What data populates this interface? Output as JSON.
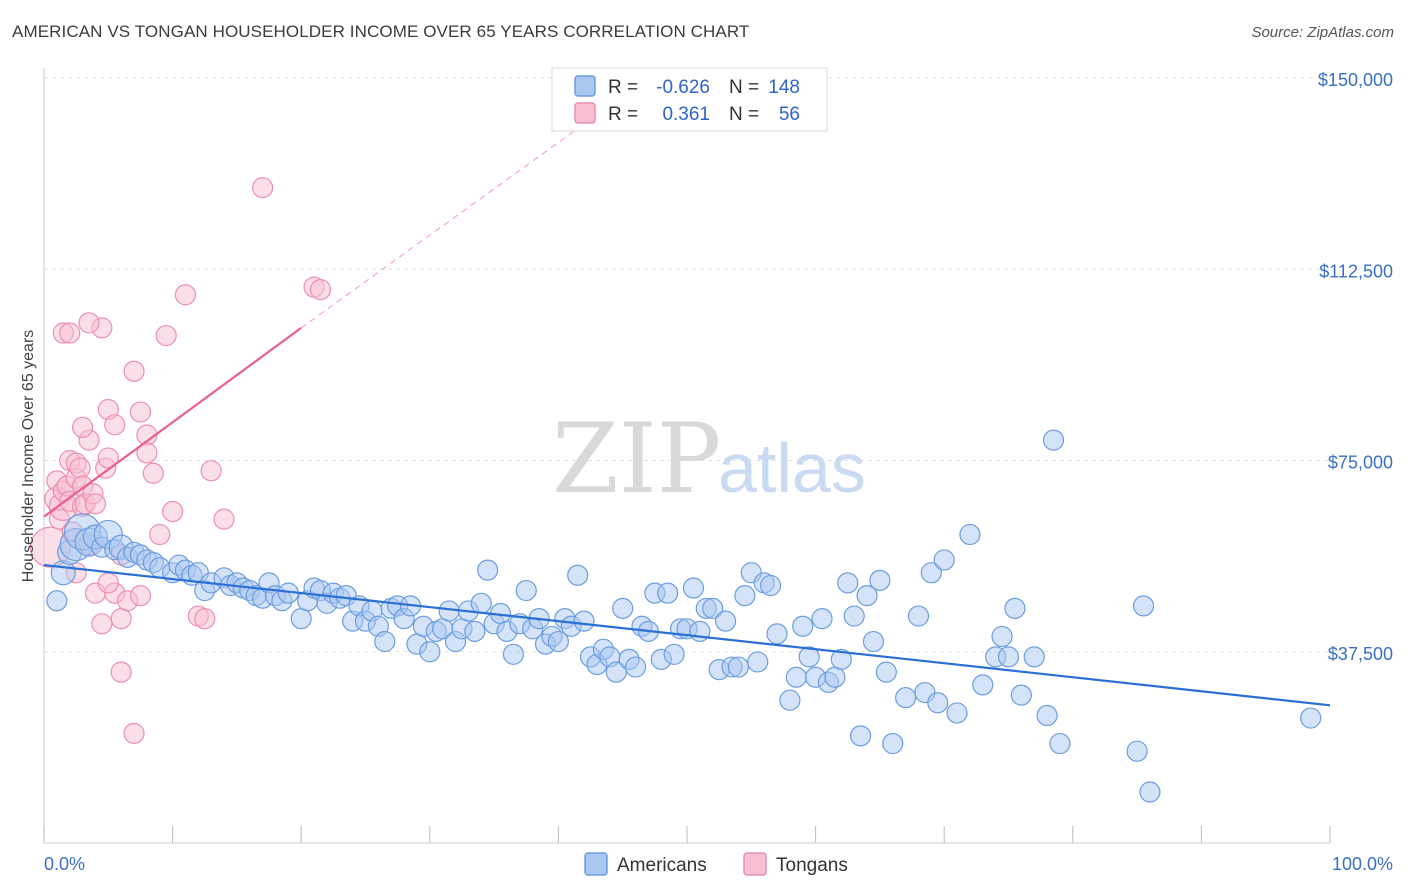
{
  "title": "AMERICAN VS TONGAN HOUSEHOLDER INCOME OVER 65 YEARS CORRELATION CHART",
  "source": "Source: ZipAtlas.com",
  "watermark": {
    "zip": "ZIP",
    "atlas": "atlas"
  },
  "legend": {
    "r_label": "R =",
    "n_label": "N =",
    "rows": [
      {
        "series": "Americans",
        "r": "-0.626",
        "n": "148",
        "color": "#8ab4ea"
      },
      {
        "series": "Tongans",
        "r": "0.361",
        "n": "56",
        "color": "#f4a6c0"
      }
    ]
  },
  "bottom_legend": [
    "Americans",
    "Tongans"
  ],
  "colors": {
    "americans_fill": "#a9c8f0",
    "americans_stroke": "#6b9de0",
    "americans_line": "#2a6fd4",
    "tongans_fill": "#f8bfd2",
    "tongans_stroke": "#ec8fae",
    "tongans_line": "#e8608e",
    "axis_text": "#3a6fc4"
  },
  "chart_data": {
    "type": "scatter",
    "title": "AMERICAN VS TONGAN HOUSEHOLDER INCOME OVER 65 YEARS CORRELATION CHART",
    "xlabel": "",
    "ylabel": "Householder Income Over 65 years",
    "xlim": [
      0,
      100
    ],
    "ylim": [
      0,
      150000
    ],
    "x_tick_labels": [
      "0.0%",
      "100.0%"
    ],
    "y_ticks": [
      37500,
      75000,
      112500,
      150000
    ],
    "y_tick_labels": [
      "$37,500",
      "$75,000",
      "$112,500",
      "$150,000"
    ],
    "grid": true,
    "legend_position": "top-center",
    "series": [
      {
        "name": "Americans",
        "trend": {
          "x": [
            0,
            100
          ],
          "y": [
            54500,
            27000
          ]
        },
        "points": [
          [
            1,
            47500,
            10
          ],
          [
            1.5,
            53000,
            12
          ],
          [
            2,
            57000,
            12
          ],
          [
            2.5,
            58500,
            16
          ],
          [
            3,
            61000,
            18
          ],
          [
            3.5,
            59000,
            14
          ],
          [
            4,
            60000,
            12
          ],
          [
            4.5,
            58000,
            10
          ],
          [
            5,
            60500,
            14
          ],
          [
            5.5,
            57500,
            10
          ],
          [
            6,
            58000,
            12
          ],
          [
            6.5,
            56000,
            10
          ],
          [
            7,
            57000,
            10
          ],
          [
            7.5,
            56500,
            10
          ],
          [
            8,
            55500,
            10
          ],
          [
            8.5,
            55000,
            10
          ],
          [
            9,
            54000,
            10
          ],
          [
            10,
            53000,
            10
          ],
          [
            10.5,
            54500,
            10
          ],
          [
            11,
            53500,
            10
          ],
          [
            11.5,
            52500,
            10
          ],
          [
            12,
            53000,
            10
          ],
          [
            12.5,
            49500,
            10
          ],
          [
            13,
            51000,
            10
          ],
          [
            14,
            52000,
            10
          ],
          [
            14.5,
            50500,
            10
          ],
          [
            15,
            51000,
            10
          ],
          [
            15.5,
            50000,
            10
          ],
          [
            16,
            49500,
            10
          ],
          [
            16.5,
            48500,
            10
          ],
          [
            17,
            48000,
            10
          ],
          [
            17.5,
            51000,
            10
          ],
          [
            18,
            48500,
            10
          ],
          [
            18.5,
            47500,
            10
          ],
          [
            19,
            49000,
            10
          ],
          [
            20,
            44000,
            10
          ],
          [
            20.5,
            47500,
            10
          ],
          [
            21,
            50000,
            10
          ],
          [
            21.5,
            49500,
            10
          ],
          [
            22,
            47000,
            10
          ],
          [
            22.5,
            49000,
            10
          ],
          [
            23,
            48000,
            10
          ],
          [
            23.5,
            48500,
            10
          ],
          [
            24,
            43500,
            10
          ],
          [
            24.5,
            46500,
            10
          ],
          [
            25,
            43500,
            10
          ],
          [
            25.5,
            45500,
            10
          ],
          [
            26,
            42500,
            10
          ],
          [
            26.5,
            39500,
            10
          ],
          [
            27,
            46000,
            10
          ],
          [
            27.5,
            46500,
            10
          ],
          [
            28,
            44000,
            10
          ],
          [
            28.5,
            46500,
            10
          ],
          [
            29,
            39000,
            10
          ],
          [
            29.5,
            42500,
            10
          ],
          [
            30,
            37500,
            10
          ],
          [
            30.5,
            41500,
            10
          ],
          [
            31,
            42000,
            10
          ],
          [
            31.5,
            45500,
            10
          ],
          [
            32,
            39500,
            10
          ],
          [
            32.5,
            42000,
            10
          ],
          [
            33,
            45500,
            10
          ],
          [
            33.5,
            41500,
            10
          ],
          [
            34,
            47000,
            10
          ],
          [
            34.5,
            53500,
            10
          ],
          [
            35,
            43000,
            10
          ],
          [
            35.5,
            45000,
            10
          ],
          [
            36,
            41500,
            10
          ],
          [
            36.5,
            37000,
            10
          ],
          [
            37,
            43000,
            10
          ],
          [
            37.5,
            49500,
            10
          ],
          [
            38,
            42000,
            10
          ],
          [
            38.5,
            44000,
            10
          ],
          [
            39,
            39000,
            10
          ],
          [
            39.5,
            40500,
            10
          ],
          [
            40,
            39500,
            10
          ],
          [
            40.5,
            44000,
            10
          ],
          [
            41,
            42500,
            10
          ],
          [
            41.5,
            52500,
            10
          ],
          [
            42,
            43500,
            10
          ],
          [
            42.5,
            36500,
            10
          ],
          [
            43,
            35000,
            10
          ],
          [
            43.5,
            38000,
            10
          ],
          [
            44,
            36500,
            10
          ],
          [
            44.5,
            33500,
            10
          ],
          [
            45,
            46000,
            10
          ],
          [
            45.5,
            36000,
            10
          ],
          [
            46,
            34500,
            10
          ],
          [
            46.5,
            42500,
            10
          ],
          [
            47,
            41500,
            10
          ],
          [
            47.5,
            49000,
            10
          ],
          [
            48,
            36000,
            10
          ],
          [
            48.5,
            49000,
            10
          ],
          [
            49,
            37000,
            10
          ],
          [
            49.5,
            42000,
            10
          ],
          [
            50,
            42000,
            10
          ],
          [
            50.5,
            50000,
            10
          ],
          [
            51,
            41500,
            10
          ],
          [
            51.5,
            46000,
            10
          ],
          [
            52,
            46000,
            10
          ],
          [
            52.5,
            34000,
            10
          ],
          [
            53,
            43500,
            10
          ],
          [
            53.5,
            34500,
            10
          ],
          [
            54,
            34500,
            10
          ],
          [
            54.5,
            48500,
            10
          ],
          [
            55,
            53000,
            10
          ],
          [
            55.5,
            35500,
            10
          ],
          [
            56,
            51000,
            10
          ],
          [
            56.5,
            50500,
            10
          ],
          [
            57,
            41000,
            10
          ],
          [
            58,
            28000,
            10
          ],
          [
            58.5,
            32500,
            10
          ],
          [
            59,
            42500,
            10
          ],
          [
            59.5,
            36500,
            10
          ],
          [
            60,
            32500,
            10
          ],
          [
            60.5,
            44000,
            10
          ],
          [
            61,
            31500,
            10
          ],
          [
            61.5,
            32500,
            10
          ],
          [
            62,
            36000,
            10
          ],
          [
            62.5,
            51000,
            10
          ],
          [
            63,
            44500,
            10
          ],
          [
            63.5,
            21000,
            10
          ],
          [
            64,
            48500,
            10
          ],
          [
            64.5,
            39500,
            10
          ],
          [
            65,
            51500,
            10
          ],
          [
            65.5,
            33500,
            10
          ],
          [
            66,
            19500,
            10
          ],
          [
            67,
            28500,
            10
          ],
          [
            68,
            44500,
            10
          ],
          [
            68.5,
            29500,
            10
          ],
          [
            69,
            53000,
            10
          ],
          [
            69.5,
            27500,
            10
          ],
          [
            70,
            55500,
            10
          ],
          [
            71,
            25500,
            10
          ],
          [
            72,
            60500,
            10
          ],
          [
            73,
            31000,
            10
          ],
          [
            74,
            36500,
            10
          ],
          [
            74.5,
            40500,
            10
          ],
          [
            75,
            36500,
            10
          ],
          [
            75.5,
            46000,
            10
          ],
          [
            76,
            29000,
            10
          ],
          [
            77,
            36500,
            10
          ],
          [
            78,
            25000,
            10
          ],
          [
            78.5,
            79000,
            10
          ],
          [
            79,
            19500,
            10
          ],
          [
            85,
            18000,
            10
          ],
          [
            85.5,
            46500,
            10
          ],
          [
            86,
            10000,
            10
          ],
          [
            98.5,
            24500,
            10
          ]
        ]
      },
      {
        "name": "Tongans",
        "trend": {
          "x": [
            0,
            20
          ],
          "y": [
            64000,
            101000
          ]
        },
        "trend_dashed": {
          "x": [
            20,
            42
          ],
          "y": [
            101000,
            141000
          ]
        },
        "points": [
          [
            0.5,
            58000,
            20
          ],
          [
            1,
            67500,
            12
          ],
          [
            1,
            71000,
            10
          ],
          [
            1.2,
            63500,
            10
          ],
          [
            1.5,
            66000,
            14
          ],
          [
            1.5,
            69000,
            10
          ],
          [
            1.8,
            70000,
            10
          ],
          [
            2,
            75000,
            10
          ],
          [
            2,
            67000,
            10
          ],
          [
            2.2,
            61000,
            10
          ],
          [
            2.5,
            71500,
            10
          ],
          [
            2.5,
            74500,
            10
          ],
          [
            2.8,
            73500,
            10
          ],
          [
            3,
            66000,
            10
          ],
          [
            3,
            70000,
            10
          ],
          [
            3.2,
            66500,
            10
          ],
          [
            3.5,
            58500,
            10
          ],
          [
            3.5,
            79000,
            10
          ],
          [
            3.8,
            68500,
            10
          ],
          [
            4,
            49000,
            10
          ],
          [
            4.5,
            43000,
            10
          ],
          [
            4.5,
            101000,
            10
          ],
          [
            4.8,
            73500,
            10
          ],
          [
            5,
            75500,
            10
          ],
          [
            5,
            85000,
            10
          ],
          [
            5.5,
            82000,
            10
          ],
          [
            5.5,
            49000,
            10
          ],
          [
            6,
            56500,
            10
          ],
          [
            6,
            44000,
            10
          ],
          [
            6.5,
            47500,
            10
          ],
          [
            7,
            92500,
            10
          ],
          [
            7,
            21500,
            10
          ],
          [
            7.5,
            84500,
            10
          ],
          [
            8,
            80000,
            10
          ],
          [
            8,
            76500,
            10
          ],
          [
            8.5,
            72500,
            10
          ],
          [
            9,
            60500,
            10
          ],
          [
            9.5,
            99500,
            10
          ],
          [
            10,
            65000,
            10
          ],
          [
            11,
            107500,
            10
          ],
          [
            12,
            44500,
            10
          ],
          [
            12.5,
            44000,
            10
          ],
          [
            13,
            73000,
            10
          ],
          [
            14,
            63500,
            10
          ],
          [
            17,
            128500,
            10
          ],
          [
            21,
            109000,
            10
          ],
          [
            21.5,
            108500,
            10
          ],
          [
            3,
            81500,
            10
          ],
          [
            2.5,
            53000,
            10
          ],
          [
            6,
            33500,
            10
          ],
          [
            1.5,
            100000,
            10
          ],
          [
            2,
            100000,
            10
          ],
          [
            3.5,
            102000,
            10
          ],
          [
            7.5,
            48500,
            10
          ],
          [
            5,
            51000,
            10
          ],
          [
            4,
            66500,
            10
          ]
        ]
      }
    ]
  }
}
